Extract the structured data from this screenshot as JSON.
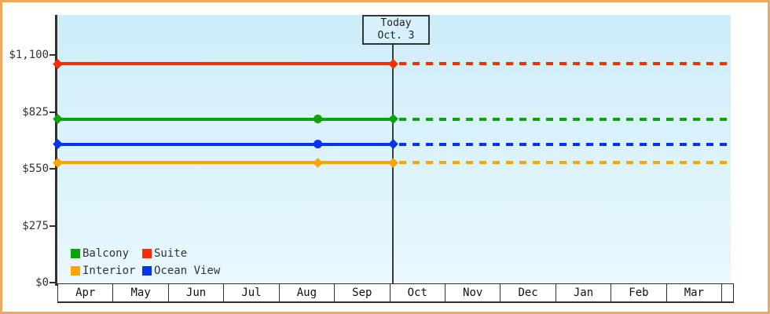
{
  "frame_color": "#ecaa5e",
  "chart_data": {
    "type": "line",
    "title": "",
    "x_axis": {
      "months": [
        "Apr",
        "May",
        "Jun",
        "Jul",
        "Aug",
        "Sep",
        "Oct",
        "Nov",
        "Dec",
        "Jan",
        "Feb",
        "Mar"
      ]
    },
    "y_axis": {
      "tick_labels": [
        "$0",
        "$275",
        "$550",
        "$825",
        "$1,100"
      ],
      "tick_values": [
        0,
        275,
        550,
        825,
        1100
      ],
      "min": 0,
      "max": 1100,
      "grid": false
    },
    "today": {
      "line1": "Today",
      "line2": "Oct. 3"
    },
    "series": [
      {
        "name": "Suite",
        "color": "#fa2e01",
        "value": 1058,
        "markers": [
          {
            "at": "start",
            "shape": "diamond"
          },
          {
            "at": "today",
            "shape": "diamond"
          }
        ],
        "style": "solid until today, dashed projection after"
      },
      {
        "name": "Balcony",
        "color": "#0da30d",
        "value": 789,
        "markers": [
          {
            "at": "start",
            "shape": "diamond"
          },
          {
            "at": "mid_august",
            "shape": "circle"
          },
          {
            "at": "today",
            "shape": "diamond"
          }
        ],
        "style": "solid until today, dashed projection after"
      },
      {
        "name": "Ocean View",
        "color": "#0535f0",
        "value": 668,
        "markers": [
          {
            "at": "start",
            "shape": "diamond"
          },
          {
            "at": "mid_august",
            "shape": "circle"
          },
          {
            "at": "today",
            "shape": "diamond"
          }
        ],
        "style": "solid until today, dashed projection after"
      },
      {
        "name": "Interior",
        "color": "#ffa502",
        "value": 580,
        "markers": [
          {
            "at": "start",
            "shape": "diamond"
          },
          {
            "at": "mid_august",
            "shape": "diamond"
          },
          {
            "at": "today",
            "shape": "diamond"
          }
        ],
        "style": "solid until today, dashed projection after"
      }
    ],
    "legend": {
      "position": "bottom-left inside plot",
      "items": [
        {
          "label": "Balcony",
          "color": "#0da30d"
        },
        {
          "label": "Suite",
          "color": "#fa2e01"
        },
        {
          "label": "Interior",
          "color": "#ffa502"
        },
        {
          "label": "Ocean View",
          "color": "#0535f0"
        }
      ]
    }
  }
}
